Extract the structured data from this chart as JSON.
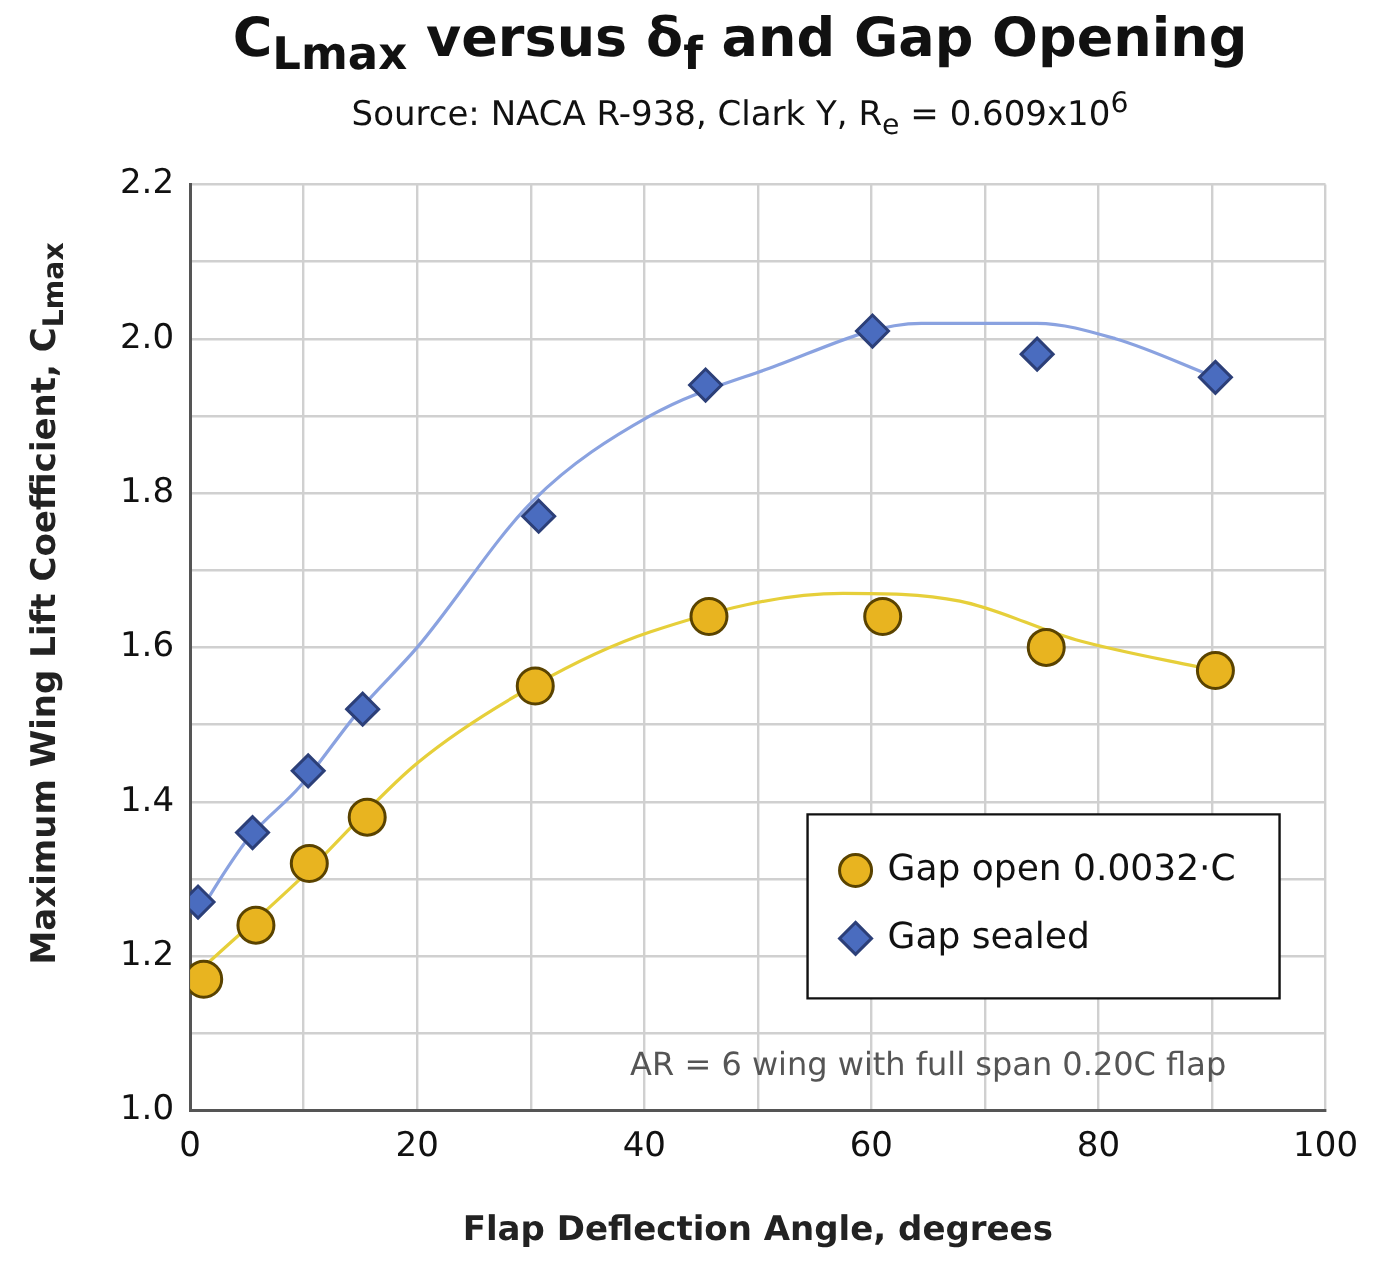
{
  "chart_data": {
    "type": "scatter",
    "title": "C$_{Lmax}$ versus δ$_{f}$ and Gap Opening",
    "subtitle": "Source: NACA R-938, Clark Y, R$_{e}$ = 0.609x10$^{6}$",
    "xlabel": "Flap Deflection Angle, degrees",
    "ylabel": "Maximum Wing Lift Coefficient,  C$_{Lmax}$",
    "annotations": [
      "AR = 6 wing with full span 0.20C flap"
    ],
    "series": [
      {
        "name": "Gap open 0.0032·C",
        "type": "scatter",
        "marker": "circle",
        "color": "#e8b420",
        "x": [
          1.2,
          5.8,
          10.5,
          15.6,
          30.4,
          45.7,
          61,
          75.4,
          90.3
        ],
        "values": [
          1.17,
          1.24,
          1.32,
          1.38,
          1.55,
          1.64,
          1.64,
          1.6,
          1.57
        ]
      },
      {
        "name": "Gap sealed",
        "type": "scatter",
        "marker": "diamond",
        "color": "#4a6cbf",
        "x": [
          0.7,
          5.5,
          10.4,
          15.2,
          30.7,
          45.4,
          60.1,
          74.6,
          90.3
        ],
        "values": [
          1.27,
          1.36,
          1.44,
          1.52,
          1.77,
          1.94,
          2.01,
          1.98,
          1.95
        ]
      },
      {
        "type": "line",
        "marker": "none",
        "color": "#e6cf3a",
        "x": [
          1.5,
          9.7,
          20,
          30.2,
          40.5,
          57.5,
          67.8,
          78,
          90.3
        ],
        "values": [
          1.19,
          1.3,
          1.45,
          1.55,
          1.62,
          1.67,
          1.66,
          1.61,
          1.57
        ]
      },
      {
        "type": "line",
        "marker": "none",
        "color": "#8aa2e0",
        "x": [
          0.5,
          5,
          9.7,
          15,
          20,
          30.2,
          40.5,
          50.7,
          64.4,
          74.6,
          81.5,
          90.3
        ],
        "values": [
          1.25,
          1.35,
          1.42,
          1.52,
          1.6,
          1.79,
          1.9,
          1.96,
          2.02,
          2.02,
          2.0,
          1.95
        ]
      }
    ],
    "xlim": [
      0,
      100
    ],
    "xticks": [
      0,
      {
        "value": 10,
        "label": null
      },
      20,
      {
        "value": 30,
        "label": null
      },
      40,
      {
        "value": 50,
        "label": null
      },
      60,
      {
        "value": 70,
        "label": null
      },
      80,
      {
        "value": 90,
        "label": null
      },
      100
    ],
    "ylim": [
      1.0,
      2.2
    ],
    "yticks": [
      {
        "value": 1.0,
        "label": "1.0"
      },
      {
        "value": 1.1,
        "label": null
      },
      1.2,
      {
        "value": 1.3,
        "label": null
      },
      1.4,
      {
        "value": 1.5,
        "label": null
      },
      1.6,
      {
        "value": 1.7,
        "label": null
      },
      1.8,
      {
        "value": 1.9,
        "label": null
      },
      {
        "value": 2.0,
        "label": "2.0"
      },
      {
        "value": 2.1,
        "label": null
      },
      2.2
    ],
    "grid": true,
    "legend": "bottom right"
  }
}
